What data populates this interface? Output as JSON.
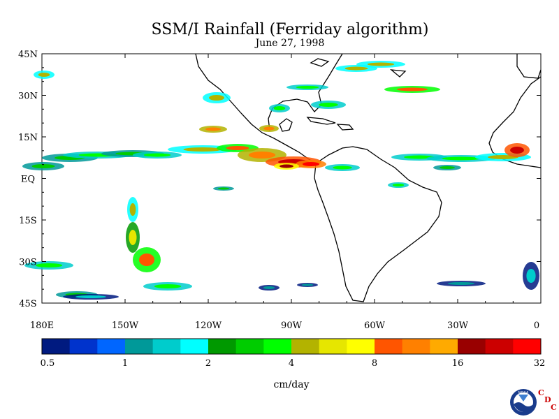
{
  "header": {
    "title": "SSM/I Rainfall (Ferriday algorithm)",
    "date": "June 27, 1998"
  },
  "map": {
    "lat_labels": [
      "45N",
      "30N",
      "15N",
      "EQ",
      "15S",
      "30S",
      "45S"
    ],
    "lat_values": [
      45,
      30,
      15,
      0,
      -15,
      -30,
      -45
    ],
    "lon_labels": [
      "180E",
      "150W",
      "120W",
      "90W",
      "60W",
      "30W",
      "0"
    ],
    "lon_values": [
      -180,
      -150,
      -120,
      -90,
      -60,
      -30,
      0
    ],
    "lon_range": [
      -180,
      0
    ],
    "lat_range": [
      -45,
      45
    ]
  },
  "colorbar": {
    "colors": [
      "#001a80",
      "#0033cc",
      "#0066ff",
      "#009999",
      "#00cccc",
      "#00ffff",
      "#009900",
      "#00cc00",
      "#00ff00",
      "#b3b300",
      "#e6e600",
      "#ffff00",
      "#ff5500",
      "#ff8000",
      "#ffaa00",
      "#990000",
      "#cc0000",
      "#ff0000"
    ],
    "tick_labels": [
      "0.5",
      "1",
      "2",
      "4",
      "8",
      "16",
      "32"
    ],
    "unit": "cm/day"
  },
  "logo": {
    "noaa_text": "NOAA",
    "cdc_c1": "C",
    "cdc_d": "D",
    "cdc_c2": "C"
  }
}
